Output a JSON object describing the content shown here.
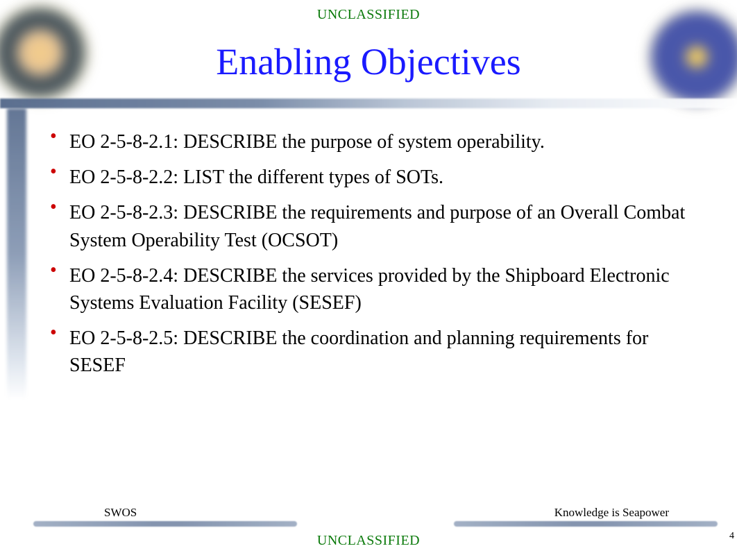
{
  "classification": {
    "text": "UNCLASSIFIED",
    "color": "#0b7a0b",
    "font_size_pt": 15
  },
  "title": {
    "text": "Enabling Objectives",
    "color": "#1a1aff",
    "font_size_pt": 40
  },
  "bullet": {
    "color": "#cc0000"
  },
  "objectives": [
    "EO 2-5-8-2.1:   DESCRIBE  the purpose of system operability.",
    "EO 2-5-8-2.2:   LIST the different types of SOTs.",
    "EO 2-5-8-2.3:   DESCRIBE  the requirements and purpose of an Overall Combat System Operability Test (OCSOT)",
    "EO 2-5-8-2.4:   DESCRIBE  the services provided by the Shipboard Electronic Systems Evaluation Facility (SESEF)",
    "EO 2-5-8-2.5:   DESCRIBE  the coordination and planning requirements for SESEF"
  ],
  "body_text": {
    "color": "#000000",
    "font_size_pt": 21
  },
  "footer": {
    "left_label": "SWOS",
    "right_label": "Knowledge is Seapower",
    "label_color": "#000000",
    "label_font_size_pt": 13,
    "bar_color": "#6f82a1"
  },
  "slide_number": "4",
  "theme": {
    "background": "#ffffff",
    "divider_gradient": [
      "#53688a",
      "#7487a5",
      "#b7c3d4",
      "#e6ebf2",
      "#ffffff"
    ],
    "left_stripe_gradient": [
      "#53688a",
      "#8294b0",
      "#dfe6ef",
      "#ffffff"
    ]
  }
}
